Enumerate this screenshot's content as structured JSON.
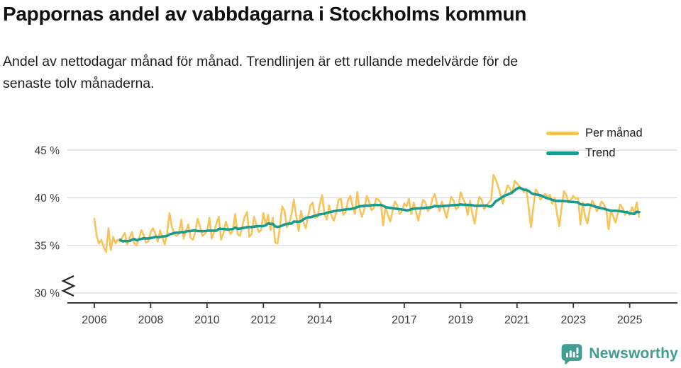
{
  "header": {
    "title": "Pappornas andel av vabbdagarna i Stockholms kommun",
    "subtitle": "Andel av nettodagar månad för månad. Trendlinjen är ett rullande medelvärde för de\nsenaste tolv månaderna."
  },
  "footer": {
    "brand_name": "Newsworthy",
    "brand_color": "#3f9d93"
  },
  "colors": {
    "grid": "#dadada",
    "axis": "#383838",
    "tick_text": "#3c3c3c",
    "axis_break": "#222222",
    "background": "#ffffff"
  },
  "chart_data": {
    "type": "line",
    "title": "Pappornas andel av vabbdagarna i Stockholms kommun",
    "subtitle": "Andel av nettodagar månad för månad. Trendlinjen är ett rullande medelvärde för de senaste tolv månaderna.",
    "unit": "%",
    "grid": "horizontal",
    "legend_position": "top-right",
    "x_axis": {
      "start": "2006-01",
      "end": "2025-05",
      "ticks": [
        2006,
        2008,
        2010,
        2012,
        2014,
        2017,
        2019,
        2021,
        2023,
        2025
      ]
    },
    "y_axis": {
      "ticks": [
        30,
        35,
        40,
        45
      ],
      "tick_suffix": " %",
      "range": [
        30,
        45
      ],
      "axis_break_below": 30
    },
    "series": [
      {
        "name": "Per månad",
        "color": "#f7c45a",
        "frequency": "monthly",
        "start_year": 2006,
        "start_month": 1,
        "values": [
          37.8,
          36.0,
          35.2,
          35.6,
          34.8,
          34.3,
          36.8,
          34.5,
          35.9,
          35.2,
          35.6,
          35.4,
          35.9,
          36.3,
          35.1,
          35.8,
          36.4,
          35.2,
          35.0,
          35.7,
          36.6,
          36.1,
          35.3,
          35.4,
          36.4,
          36.8,
          36.2,
          35.4,
          36.6,
          35.8,
          35.1,
          36.3,
          38.4,
          37.0,
          36.2,
          36.0,
          36.2,
          37.7,
          35.7,
          36.5,
          37.2,
          35.8,
          35.6,
          36.4,
          37.8,
          37.0,
          36.0,
          36.2,
          36.5,
          37.9,
          35.7,
          36.4,
          37.3,
          38.0,
          35.6,
          36.3,
          37.5,
          36.7,
          36.2,
          36.6,
          38.3,
          36.2,
          36.0,
          37.0,
          38.0,
          38.5,
          35.9,
          36.2,
          38.0,
          37.2,
          36.4,
          36.6,
          38.4,
          37.2,
          38.2,
          36.6,
          37.9,
          35.3,
          35.2,
          36.9,
          39.1,
          38.6,
          36.9,
          37.3,
          38.3,
          39.8,
          38.0,
          36.5,
          38.6,
          37.5,
          36.8,
          38.0,
          39.2,
          39.5,
          37.9,
          38.0,
          39.3,
          40.3,
          38.3,
          37.7,
          39.2,
          38.1,
          37.6,
          38.4,
          39.8,
          39.9,
          38.2,
          38.5,
          39.7,
          40.2,
          39.1,
          38.3,
          40.6,
          38.8,
          38.0,
          38.8,
          40.2,
          39.6,
          38.7,
          38.9,
          39.9,
          39.8,
          39.5,
          37.1,
          39.0,
          38.2,
          37.5,
          38.6,
          39.6,
          39.2,
          38.3,
          38.6,
          39.4,
          39.1,
          39.9,
          38.3,
          39.5,
          38.5,
          37.6,
          38.8,
          39.8,
          39.5,
          38.6,
          38.9,
          39.9,
          40.4,
          39.3,
          38.6,
          39.6,
          38.7,
          37.9,
          39.0,
          40.1,
          39.7,
          38.8,
          39.0,
          40.6,
          39.9,
          39.4,
          38.2,
          39.7,
          38.3,
          37.3,
          39.0,
          40.1,
          39.8,
          38.8,
          39.2,
          39.5,
          39.8,
          42.4,
          41.9,
          41.2,
          40.3,
          39.4,
          40.5,
          41.3,
          41.0,
          40.4,
          41.8,
          41.5,
          41.2,
          41.0,
          40.6,
          40.9,
          38.9,
          36.9,
          39.2,
          40.9,
          40.5,
          39.8,
          40.2,
          40.4,
          40.1,
          40.3,
          39.4,
          40.0,
          38.4,
          37.0,
          39.0,
          40.7,
          40.3,
          39.5,
          39.8,
          40.2,
          39.9,
          40.0,
          37.2,
          39.5,
          38.0,
          37.3,
          38.8,
          39.7,
          39.3,
          38.6,
          39.0,
          39.6,
          39.3,
          38.8,
          36.7,
          38.6,
          38.0,
          37.4,
          38.4,
          39.3,
          38.9,
          38.2,
          38.6,
          38.2,
          39.0,
          38.4,
          39.5,
          38.0
        ]
      },
      {
        "name": "Trend",
        "color": "#1a9b90",
        "derived_from": "Per månad",
        "definition": "rullande medelvärde för de senaste tolv månaderna",
        "window_months": 12
      }
    ]
  }
}
